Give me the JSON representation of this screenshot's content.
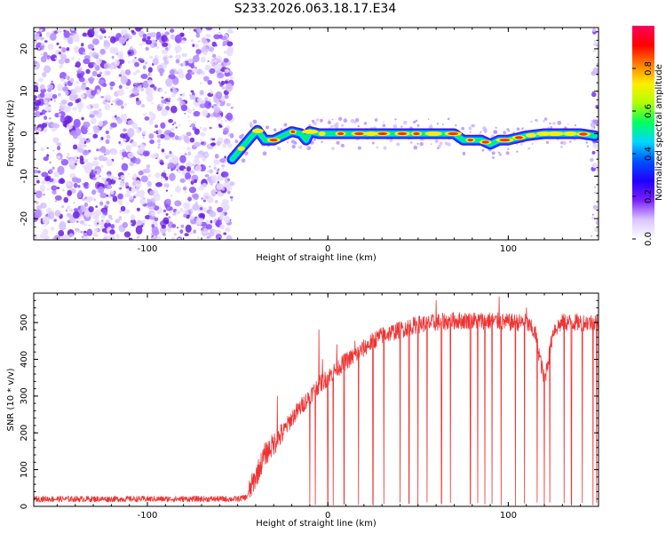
{
  "title": "S233.2026.063.18.17.E34",
  "chart_data": [
    {
      "type": "heatmap",
      "xlabel": "Height of straight line (km)",
      "ylabel": "Frequency (Hz)",
      "xlim": [
        -163,
        150
      ],
      "ylim": [
        -25,
        25
      ],
      "xticks": [
        -100,
        0,
        100
      ],
      "yticks": [
        -20,
        -10,
        0,
        10,
        20
      ],
      "grid": false,
      "noise_region_x": [
        -163,
        -53
      ],
      "carrier_ridge": {
        "x": [
          -53,
          -50,
          -46,
          -42,
          -39,
          -35,
          -30,
          -25,
          -20,
          -15,
          -12,
          -10,
          -5,
          0,
          10,
          20,
          30,
          40,
          50,
          60,
          70,
          75,
          80,
          85,
          90,
          95,
          100,
          110,
          120,
          130,
          140,
          148
        ],
        "y": [
          -6,
          -4.5,
          -2.5,
          -0.5,
          0.8,
          -1.5,
          -1.5,
          -0.5,
          0.5,
          0,
          -1.5,
          0.5,
          0,
          0,
          0,
          0,
          0,
          0,
          0,
          0,
          0,
          -1.5,
          -1.5,
          -1.5,
          -2.5,
          -1.5,
          -1.5,
          -0.5,
          0,
          0,
          0,
          -0.5
        ]
      },
      "colorbar": {
        "label": "Normalized spectral amplitude",
        "range": [
          0,
          1
        ],
        "ticks": [
          0.0,
          0.2,
          0.4,
          0.6,
          0.8
        ],
        "tick_labels": [
          "0.0",
          "0.2",
          "0.4",
          "0.6",
          "0.8"
        ],
        "colors": [
          "#ffffff",
          "#d9c4ff",
          "#7a1fff",
          "#2000ff",
          "#0050ff",
          "#00d8ff",
          "#00ff60",
          "#b0ff00",
          "#ffee00",
          "#ff8000",
          "#ff0000",
          "#ff0060"
        ]
      }
    },
    {
      "type": "line",
      "xlabel": "Height of straight line (km)",
      "ylabel": "SNR (10 * v/v)",
      "xlim": [
        -163,
        150
      ],
      "ylim": [
        0,
        580
      ],
      "xticks": [
        -100,
        0,
        100
      ],
      "yticks": [
        0,
        100,
        200,
        300,
        400,
        500
      ],
      "grid": false,
      "color": "#ee3333",
      "trend": {
        "x": [
          -163,
          -140,
          -120,
          -100,
          -80,
          -60,
          -50,
          -45,
          -40,
          -35,
          -30,
          -25,
          -20,
          -15,
          -10,
          -5,
          0,
          5,
          10,
          15,
          20,
          25,
          30,
          40,
          50,
          60,
          70,
          80,
          90,
          100,
          110,
          115,
          120,
          125,
          130,
          140,
          150
        ],
        "y": [
          20,
          20,
          20,
          20,
          20,
          20,
          20,
          25,
          80,
          140,
          170,
          200,
          240,
          270,
          300,
          330,
          350,
          375,
          395,
          410,
          430,
          450,
          465,
          480,
          495,
          500,
          505,
          505,
          505,
          500,
          500,
          470,
          340,
          480,
          500,
          500,
          500
        ]
      },
      "spikes_up": [
        [
          -28,
          300
        ],
        [
          -5,
          480
        ],
        [
          -3,
          400
        ],
        [
          5,
          440
        ],
        [
          15,
          450
        ],
        [
          60,
          560
        ],
        [
          95,
          570
        ],
        [
          110,
          540
        ]
      ],
      "dropouts_x": [
        -10,
        -7,
        0,
        3,
        9,
        17,
        25,
        31,
        40,
        45,
        50,
        55,
        63,
        68,
        79,
        83,
        87,
        91,
        96,
        104,
        109,
        116,
        120,
        123,
        131,
        135,
        141,
        147,
        149
      ]
    }
  ]
}
